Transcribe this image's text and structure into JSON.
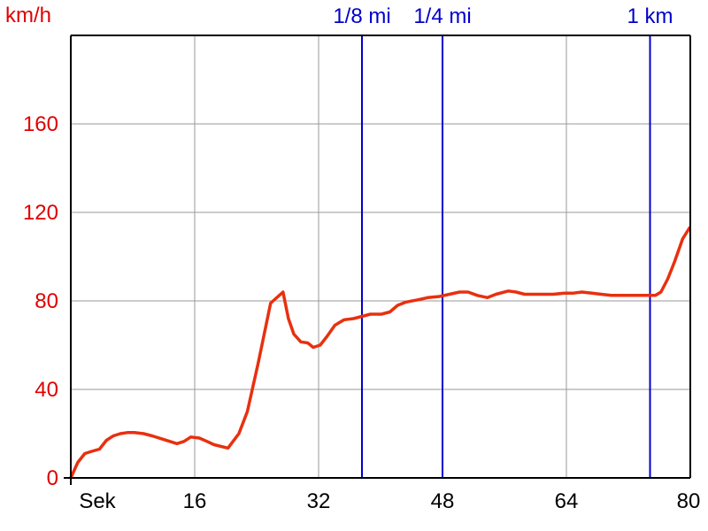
{
  "chart_data": {
    "type": "line",
    "ylabel": "km/h",
    "xlabel": "Sek",
    "xlim": [
      0,
      80
    ],
    "ylim": [
      0,
      200
    ],
    "x_ticks": [
      {
        "value": 0,
        "label": "Sek"
      },
      {
        "value": 16,
        "label": "16"
      },
      {
        "value": 32,
        "label": "32"
      },
      {
        "value": 48,
        "label": "48"
      },
      {
        "value": 64,
        "label": "64"
      },
      {
        "value": 80,
        "label": "80"
      }
    ],
    "y_ticks": [
      {
        "value": 0,
        "label": "0"
      },
      {
        "value": 40,
        "label": "40"
      },
      {
        "value": 80,
        "label": "80"
      },
      {
        "value": 120,
        "label": "120"
      },
      {
        "value": 160,
        "label": "160"
      }
    ],
    "grid": true,
    "markers": [
      {
        "x": 37.6,
        "label": "1/8 mi"
      },
      {
        "x": 48.0,
        "label": "1/4 mi"
      },
      {
        "x": 74.8,
        "label": "1 km"
      }
    ],
    "series": [
      {
        "color": "#e8300f",
        "x": [
          0.0,
          0.9,
          1.8,
          2.7,
          3.7,
          4.6,
          5.5,
          6.4,
          7.3,
          8.2,
          9.4,
          10.5,
          11.9,
          13.7,
          14.6,
          15.5,
          16.6,
          17.6,
          18.5,
          20.3,
          21.7,
          22.8,
          24.2,
          25.8,
          27.4,
          28.1,
          28.8,
          29.7,
          30.6,
          31.3,
          32.2,
          33.1,
          34.1,
          35.3,
          36.5,
          37.6,
          38.7,
          40.1,
          41.2,
          42.2,
          43.3,
          44.8,
          46.1,
          47.6,
          48.9,
          50.2,
          51.3,
          52.5,
          53.8,
          54.9,
          56.5,
          57.5,
          58.6,
          60.7,
          62.3,
          63.7,
          64.8,
          66.0,
          67.3,
          68.5,
          69.8,
          70.9,
          72.1,
          73.4,
          74.6,
          75.5,
          76.2,
          77.1,
          78.0,
          79.0,
          79.9
        ],
        "y": [
          0,
          7,
          11,
          12,
          13,
          17,
          19,
          20,
          20.5,
          20.5,
          20,
          19,
          17.5,
          15.5,
          16.5,
          18.5,
          18,
          16.5,
          15,
          13.5,
          20,
          30,
          52,
          79,
          84,
          72,
          65,
          61.5,
          61,
          59,
          60,
          64,
          69,
          71.5,
          72,
          73,
          74,
          74,
          75,
          78,
          79.5,
          80.5,
          81.5,
          82,
          83,
          84,
          84,
          82.5,
          81.5,
          83,
          84.5,
          84,
          83,
          83,
          83,
          83.5,
          83.5,
          84,
          83.5,
          83,
          82.5,
          82.5,
          82.5,
          82.5,
          82.5,
          82.5,
          84,
          90,
          98,
          108,
          113
        ]
      }
    ],
    "colors": {
      "axis_text": "#e00000",
      "x_text": "#000000",
      "marker": "#0000cc",
      "grid": "#9a9a9a",
      "frame": "#000000"
    }
  }
}
